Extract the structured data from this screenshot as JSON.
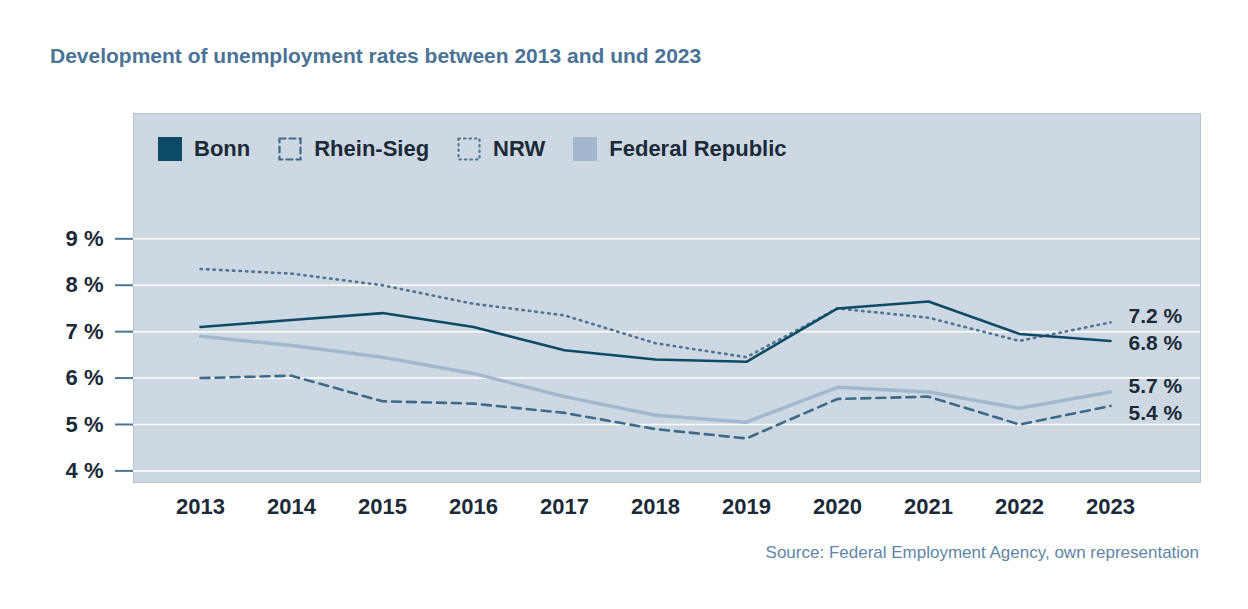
{
  "chart_data": {
    "type": "line",
    "title": "Development of unemployment rates between 2013 and und 2023",
    "caption": "Source: Federal Employment Agency, own representation",
    "categories": [
      "2013",
      "2014",
      "2015",
      "2016",
      "2017",
      "2018",
      "2019",
      "2020",
      "2021",
      "2022",
      "2023"
    ],
    "series": [
      {
        "name": "Bonn",
        "color": "#0d4a66",
        "line_style": "solid",
        "values": [
          7.1,
          7.25,
          7.4,
          7.1,
          6.6,
          6.4,
          6.35,
          7.5,
          7.65,
          6.95,
          6.8
        ],
        "value_labels": [
          null,
          null,
          null,
          null,
          null,
          null,
          null,
          null,
          null,
          null,
          "6.8 %"
        ]
      },
      {
        "name": "Rhein-Sieg",
        "color": "#3d6a8a",
        "line_style": "dashed",
        "values": [
          6.0,
          6.05,
          5.5,
          5.45,
          5.25,
          4.9,
          4.7,
          5.55,
          5.6,
          5.0,
          5.4
        ],
        "value_labels": [
          null,
          null,
          null,
          null,
          null,
          null,
          null,
          null,
          null,
          null,
          "5.4 %"
        ]
      },
      {
        "name": "NRW",
        "color": "#4f7595",
        "line_style": "dotted",
        "values": [
          8.35,
          8.25,
          8.0,
          7.6,
          7.35,
          6.75,
          6.45,
          7.5,
          7.3,
          6.8,
          7.2
        ],
        "value_labels": [
          null,
          null,
          null,
          null,
          null,
          null,
          null,
          null,
          null,
          null,
          "7.2 %"
        ]
      },
      {
        "name": "Federal Republic",
        "color": "#a3b8cf",
        "line_style": "solid",
        "values": [
          6.9,
          6.7,
          6.45,
          6.1,
          5.6,
          5.2,
          5.05,
          5.8,
          5.7,
          5.35,
          5.7
        ],
        "value_labels": [
          null,
          null,
          null,
          null,
          null,
          null,
          null,
          null,
          null,
          null,
          "5.7 %"
        ]
      }
    ],
    "ylim": [
      3.75,
      11.7
    ],
    "yticks": [
      {
        "value": 4,
        "label": "4 %"
      },
      {
        "value": 5,
        "label": "5 %"
      },
      {
        "value": 6,
        "label": "6 %"
      },
      {
        "value": 7,
        "label": "7 %"
      },
      {
        "value": 8,
        "label": "8 %"
      },
      {
        "value": 9,
        "label": "9 %"
      }
    ],
    "grid": true,
    "legend": "top-left",
    "data_labels": true
  }
}
